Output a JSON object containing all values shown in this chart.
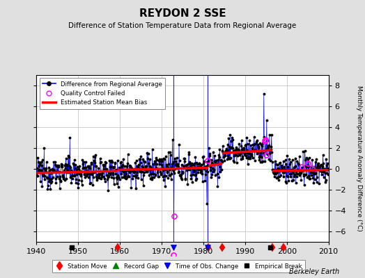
{
  "title": "REYDON 2 SSE",
  "subtitle": "Difference of Station Temperature Data from Regional Average",
  "ylabel": "Monthly Temperature Anomaly Difference (°C)",
  "xlabel_note": "Berkeley Earth",
  "xlim": [
    1940,
    2010
  ],
  "ylim": [
    -7.0,
    9.0
  ],
  "yticks": [
    -6,
    -4,
    -2,
    0,
    2,
    4,
    6,
    8
  ],
  "xticks": [
    1940,
    1950,
    1960,
    1970,
    1980,
    1990,
    2000,
    2010
  ],
  "bg_color": "#e0e0e0",
  "plot_bg_color": "#ffffff",
  "grid_color": "#bbbbbb",
  "station_moves": [
    1959.5,
    1981.2,
    1984.5,
    1996.5,
    1999.2
  ],
  "empirical_breaks": [
    1948.5,
    1996.0
  ],
  "obs_changes": [
    1972.8,
    1981.0
  ],
  "qc_failed_x": [
    1972.9,
    1981.1,
    1994.7,
    1994.9,
    1995.1,
    2003.5,
    2005.0,
    2006.0
  ],
  "obs_change_line1": 1972.8,
  "obs_change_line2": 1981.0,
  "bias_segments": [
    {
      "x": [
        1940,
        1959.5
      ],
      "y": [
        -0.4,
        -0.2
      ]
    },
    {
      "x": [
        1959.5,
        1981.2
      ],
      "y": [
        -0.1,
        0.1
      ]
    },
    {
      "x": [
        1981.2,
        1984.5
      ],
      "y": [
        0.3,
        0.5
      ]
    },
    {
      "x": [
        1984.5,
        1996.5
      ],
      "y": [
        1.5,
        1.8
      ]
    },
    {
      "x": [
        1996.5,
        2010
      ],
      "y": [
        -0.2,
        -0.1
      ]
    }
  ],
  "marker_y": -5.5,
  "seed": 12345
}
